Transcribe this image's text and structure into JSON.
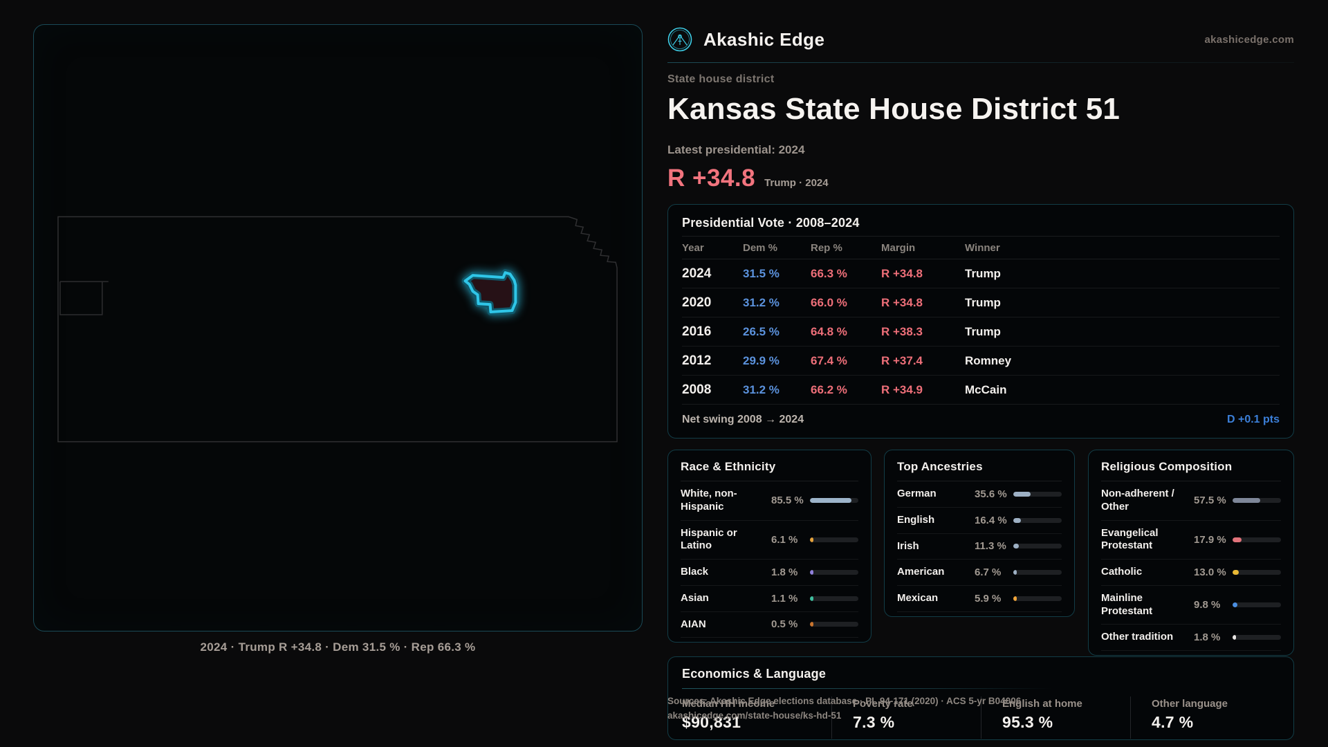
{
  "brand": {
    "name": "Akashic Edge",
    "domain": "akashicedge.com",
    "accent": "#35c8e8"
  },
  "header": {
    "kicker": "State house district",
    "title": "Kansas State House District 51",
    "latest_label": "Latest presidential: 2024",
    "latest_margin": "R +34.8",
    "latest_context": "Trump · 2024"
  },
  "map": {
    "caption": "2024 · Trump R +34.8 · Dem 31.5 % · Rep 66.3 %",
    "highlight_color": "#2fc6e8",
    "district_fill": "#261116"
  },
  "vote_table": {
    "title": "Presidential Vote · 2008–2024",
    "columns": [
      "Year",
      "Dem %",
      "Rep %",
      "Margin",
      "Winner"
    ],
    "rows": [
      {
        "year": "2024",
        "dem": "31.5 %",
        "rep": "66.3 %",
        "margin": "R +34.8",
        "winner": "Trump"
      },
      {
        "year": "2020",
        "dem": "31.2 %",
        "rep": "66.0 %",
        "margin": "R +34.8",
        "winner": "Trump"
      },
      {
        "year": "2016",
        "dem": "26.5 %",
        "rep": "64.8 %",
        "margin": "R +38.3",
        "winner": "Trump"
      },
      {
        "year": "2012",
        "dem": "29.9 %",
        "rep": "67.4 %",
        "margin": "R +37.4",
        "winner": "Romney"
      },
      {
        "year": "2008",
        "dem": "31.2 %",
        "rep": "66.2 %",
        "margin": "R +34.9",
        "winner": "McCain"
      }
    ],
    "footer_label": "Net swing 2008 → 2024",
    "footer_value": "D +0.1 pts",
    "dem_color": "#5b92dd",
    "rep_color": "#ee6f79",
    "swing_color": "#3c80da"
  },
  "panels": [
    {
      "title": "Race & Ethnicity",
      "rows": [
        {
          "label": "White, non-Hispanic",
          "value": "85.5 %",
          "pct": 85.5,
          "color": "#9db4ca"
        },
        {
          "label": "Hispanic or Latino",
          "value": "6.1 %",
          "pct": 6.1,
          "color": "#e5a23c"
        },
        {
          "label": "Black",
          "value": "1.8 %",
          "pct": 1.8,
          "color": "#9080dc"
        },
        {
          "label": "Asian",
          "value": "1.1 %",
          "pct": 1.1,
          "color": "#3fbf9f"
        },
        {
          "label": "AIAN",
          "value": "0.5 %",
          "pct": 0.5,
          "color": "#c8742e"
        }
      ]
    },
    {
      "title": "Top Ancestries",
      "rows": [
        {
          "label": "German",
          "value": "35.6 %",
          "pct": 35.6,
          "color": "#9db0c4"
        },
        {
          "label": "English",
          "value": "16.4 %",
          "pct": 16.4,
          "color": "#9db0c4"
        },
        {
          "label": "Irish",
          "value": "11.3 %",
          "pct": 11.3,
          "color": "#9db0c4"
        },
        {
          "label": "American",
          "value": "6.7 %",
          "pct": 6.7,
          "color": "#9db0c4"
        },
        {
          "label": "Mexican",
          "value": "5.9 %",
          "pct": 5.9,
          "color": "#f0a53a"
        }
      ]
    },
    {
      "title": "Religious Composition",
      "rows": [
        {
          "label": "Non-adherent / Other",
          "value": "57.5 %",
          "pct": 57.5,
          "color": "#7e8799"
        },
        {
          "label": "Evangelical Protestant",
          "value": "17.9 %",
          "pct": 17.9,
          "color": "#e2737b"
        },
        {
          "label": "Catholic",
          "value": "13.0 %",
          "pct": 13.0,
          "color": "#e9b935"
        },
        {
          "label": "Mainline Protestant",
          "value": "9.8 %",
          "pct": 9.8,
          "color": "#4b8fe2"
        },
        {
          "label": "Other tradition",
          "value": "1.8 %",
          "pct": 1.8,
          "color": "#e8e6e4"
        }
      ]
    }
  ],
  "economics": {
    "title": "Economics & Language",
    "stats": [
      {
        "label": "Median HH income",
        "value": "$90,831"
      },
      {
        "label": "Poverty rate",
        "value": "7.3 %"
      },
      {
        "label": "English at home",
        "value": "95.3 %"
      },
      {
        "label": "Other language",
        "value": "4.7 %"
      }
    ]
  },
  "sources": {
    "line1": "Sources: Akashic Edge elections database · PL 94-171 (2020) · ACS 5-yr B04006",
    "line2": "akashicedge.com/state-house/ks-hd-51"
  }
}
